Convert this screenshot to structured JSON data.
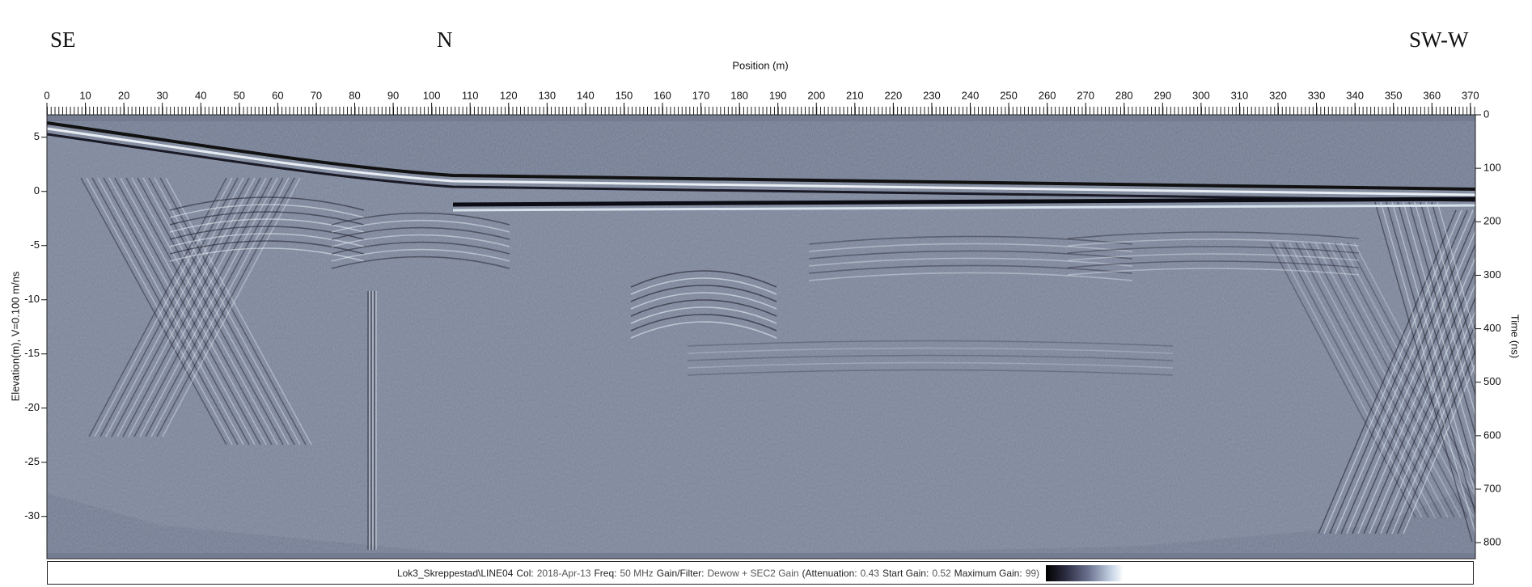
{
  "chart_data": {
    "type": "radargram",
    "annotations": [
      "SE",
      "N",
      "SW-W"
    ],
    "x_label": "Position (m)",
    "y_label": "Elevation(m), V=0.100 m/ns",
    "y2_label": "Time (ns)",
    "xlim": [
      0,
      371.3
    ],
    "xticks": [
      0,
      10,
      20,
      30,
      40,
      50,
      60,
      70,
      80,
      90,
      100,
      110,
      120,
      130,
      140,
      150,
      160,
      170,
      180,
      190,
      200,
      210,
      220,
      230,
      240,
      250,
      260,
      270,
      280,
      290,
      300,
      310,
      320,
      330,
      340,
      350,
      360,
      370
    ],
    "ylim": [
      -33.9,
      7.07
    ],
    "yticks": [
      5,
      0,
      -5,
      -10,
      -15,
      -20,
      -25,
      -30
    ],
    "y2lim": [
      0,
      830
    ],
    "y2_reversed": true,
    "y2ticks": [
      0,
      100,
      200,
      300,
      400,
      500,
      600,
      700,
      800
    ],
    "info": {
      "file": "Lok3_Skreppestad\\LINE04",
      "fields": [
        {
          "label": "Col:",
          "value": "2018-Apr-13"
        },
        {
          "label": "Freq:",
          "value": "50 MHz"
        },
        {
          "label": "Gain/Filter:",
          "value": "Dewow + SEC2 Gain"
        },
        {
          "label": "(Attenuation:",
          "value": "0.43"
        },
        {
          "label": "Start Gain:",
          "value": "0.52"
        },
        {
          "label": "Maximum Gain:",
          "value": "99)"
        }
      ]
    }
  }
}
